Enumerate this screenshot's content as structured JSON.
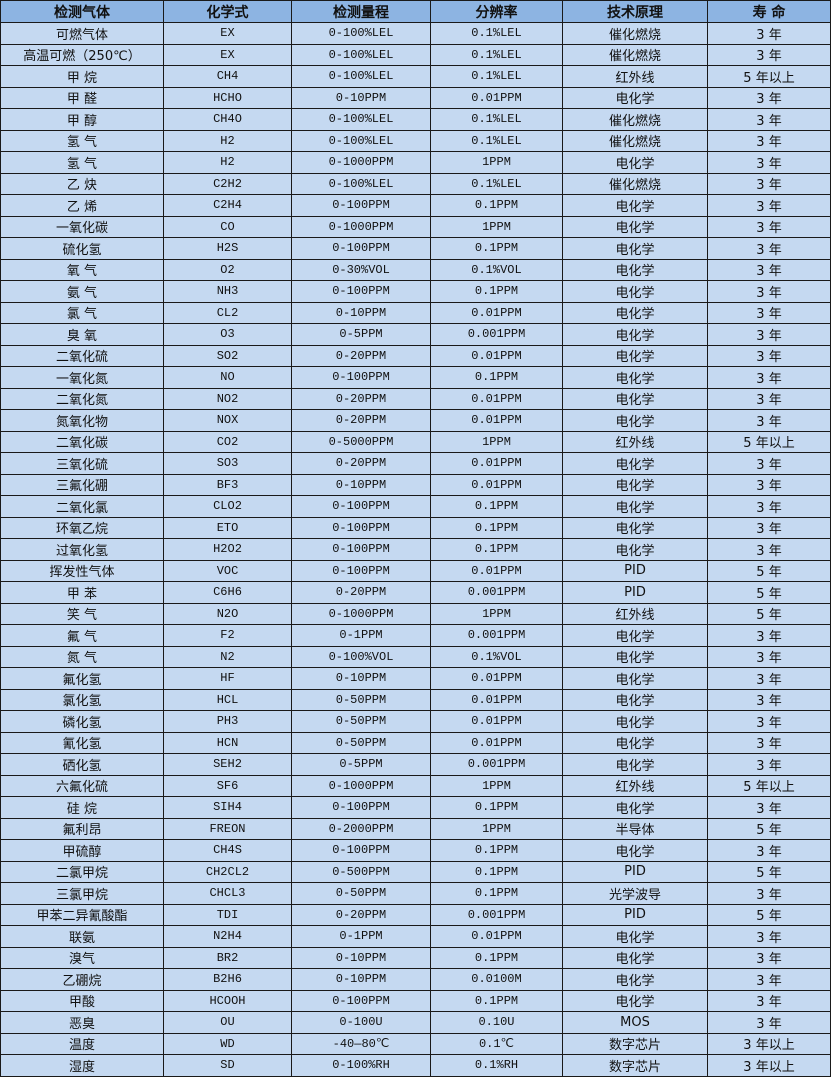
{
  "table": {
    "headers": [
      "检测气体",
      "化学式",
      "检测量程",
      "分辨率",
      "技术原理",
      "寿 命"
    ],
    "rows": [
      [
        "可燃气体",
        "EX",
        "0-100%LEL",
        "0.1%LEL",
        "催化燃烧",
        "3 年"
      ],
      [
        "高温可燃（250℃）",
        "EX",
        "0-100%LEL",
        "0.1%LEL",
        "催化燃烧",
        "3 年"
      ],
      [
        "甲 烷",
        "CH4",
        "0-100%LEL",
        "0.1%LEL",
        "红外线",
        "5 年以上"
      ],
      [
        "甲 醛",
        "HCHO",
        "0-10PPM",
        "0.01PPM",
        "电化学",
        "3 年"
      ],
      [
        "甲 醇",
        "CH4O",
        "0-100%LEL",
        "0.1%LEL",
        "催化燃烧",
        "3 年"
      ],
      [
        "氢 气",
        "H2",
        "0-100%LEL",
        "0.1%LEL",
        "催化燃烧",
        "3 年"
      ],
      [
        "氢 气",
        "H2",
        "0-1000PPM",
        "1PPM",
        "电化学",
        "3 年"
      ],
      [
        "乙 炔",
        "C2H2",
        "0-100%LEL",
        "0.1%LEL",
        "催化燃烧",
        "3 年"
      ],
      [
        "乙 烯",
        "C2H4",
        "0-100PPM",
        "0.1PPM",
        "电化学",
        "3 年"
      ],
      [
        "一氧化碳",
        "CO",
        "0-1000PPM",
        "1PPM",
        "电化学",
        "3 年"
      ],
      [
        "硫化氢",
        "H2S",
        "0-100PPM",
        "0.1PPM",
        "电化学",
        "3 年"
      ],
      [
        "氧 气",
        "O2",
        "0-30%VOL",
        "0.1%VOL",
        "电化学",
        "3 年"
      ],
      [
        "氨 气",
        "NH3",
        "0-100PPM",
        "0.1PPM",
        "电化学",
        "3 年"
      ],
      [
        "氯 气",
        "CL2",
        "0-10PPM",
        "0.01PPM",
        "电化学",
        "3 年"
      ],
      [
        "臭 氧",
        "O3",
        "0-5PPM",
        "0.001PPM",
        "电化学",
        "3 年"
      ],
      [
        "二氧化硫",
        "SO2",
        "0-20PPM",
        "0.01PPM",
        "电化学",
        "3 年"
      ],
      [
        "一氧化氮",
        "NO",
        "0-100PPM",
        "0.1PPM",
        "电化学",
        "3 年"
      ],
      [
        "二氧化氮",
        "NO2",
        "0-20PPM",
        "0.01PPM",
        "电化学",
        "3 年"
      ],
      [
        "氮氧化物",
        "NOX",
        "0-20PPM",
        "0.01PPM",
        "电化学",
        "3 年"
      ],
      [
        "二氧化碳",
        "CO2",
        "0-5000PPM",
        "1PPM",
        "红外线",
        "5 年以上"
      ],
      [
        "三氧化硫",
        "SO3",
        "0-20PPM",
        "0.01PPM",
        "电化学",
        "3 年"
      ],
      [
        "三氟化硼",
        "BF3",
        "0-10PPM",
        "0.01PPM",
        "电化学",
        "3 年"
      ],
      [
        "二氧化氯",
        "CLO2",
        "0-100PPM",
        "0.1PPM",
        "电化学",
        "3 年"
      ],
      [
        "环氧乙烷",
        "ETO",
        "0-100PPM",
        "0.1PPM",
        "电化学",
        "3 年"
      ],
      [
        "过氧化氢",
        "H2O2",
        "0-100PPM",
        "0.1PPM",
        "电化学",
        "3 年"
      ],
      [
        "挥发性气体",
        "VOC",
        "0-100PPM",
        "0.01PPM",
        "PID",
        "5 年"
      ],
      [
        "甲 苯",
        "C6H6",
        "0-20PPM",
        "0.001PPM",
        "PID",
        "5 年"
      ],
      [
        "笑 气",
        "N2O",
        "0-1000PPM",
        "1PPM",
        "红外线",
        "5 年"
      ],
      [
        "氟 气",
        "F2",
        "0-1PPM",
        "0.001PPM",
        "电化学",
        "3 年"
      ],
      [
        "氮 气",
        "N2",
        "0-100%VOL",
        "0.1%VOL",
        "电化学",
        "3 年"
      ],
      [
        "氟化氢",
        "HF",
        "0-10PPM",
        "0.01PPM",
        "电化学",
        "3 年"
      ],
      [
        "氯化氢",
        "HCL",
        "0-50PPM",
        "0.01PPM",
        "电化学",
        "3 年"
      ],
      [
        "磷化氢",
        "PH3",
        "0-50PPM",
        "0.01PPM",
        "电化学",
        "3 年"
      ],
      [
        "氰化氢",
        "HCN",
        "0-50PPM",
        "0.01PPM",
        "电化学",
        "3 年"
      ],
      [
        "硒化氢",
        "SEH2",
        "0-5PPM",
        "0.001PPM",
        "电化学",
        "3 年"
      ],
      [
        "六氟化硫",
        "SF6",
        "0-1000PPM",
        "1PPM",
        "红外线",
        "5 年以上"
      ],
      [
        "硅 烷",
        "SIH4",
        "0-100PPM",
        "0.1PPM",
        "电化学",
        "3 年"
      ],
      [
        "氟利昂",
        "FREON",
        "0-2000PPM",
        "1PPM",
        "半导体",
        "5 年"
      ],
      [
        "甲硫醇",
        "CH4S",
        "0-100PPM",
        "0.1PPM",
        "电化学",
        "3 年"
      ],
      [
        "二氯甲烷",
        "CH2CL2",
        "0-500PPM",
        "0.1PPM",
        "PID",
        "5 年"
      ],
      [
        "三氯甲烷",
        "CHCL3",
        "0-50PPM",
        "0.1PPM",
        "光学波导",
        "3 年"
      ],
      [
        "甲苯二异氰酸酯",
        "TDI",
        "0-20PPM",
        "0.001PPM",
        "PID",
        "5 年"
      ],
      [
        "联氨",
        "N2H4",
        "0-1PPM",
        "0.01PPM",
        "电化学",
        "3 年"
      ],
      [
        "溴气",
        "BR2",
        "0-10PPM",
        "0.1PPM",
        "电化学",
        "3 年"
      ],
      [
        "乙硼烷",
        "B2H6",
        "0-10PPM",
        "0.0100M",
        "电化学",
        "3 年"
      ],
      [
        "甲酸",
        "HCOOH",
        "0-100PPM",
        "0.1PPM",
        "电化学",
        "3 年"
      ],
      [
        "恶臭",
        "OU",
        "0-100U",
        "0.10U",
        "MOS",
        "3 年"
      ],
      [
        "温度",
        "WD",
        "-40—80℃",
        "0.1℃",
        "数字芯片",
        "3 年以上"
      ],
      [
        "湿度",
        "SD",
        "0-100%RH",
        "0.1%RH",
        "数字芯片",
        "3 年以上"
      ]
    ]
  },
  "colors": {
    "header_bg": "#8db4e2",
    "cell_bg": "#c5d9f1",
    "border": "#1a1a1a"
  }
}
